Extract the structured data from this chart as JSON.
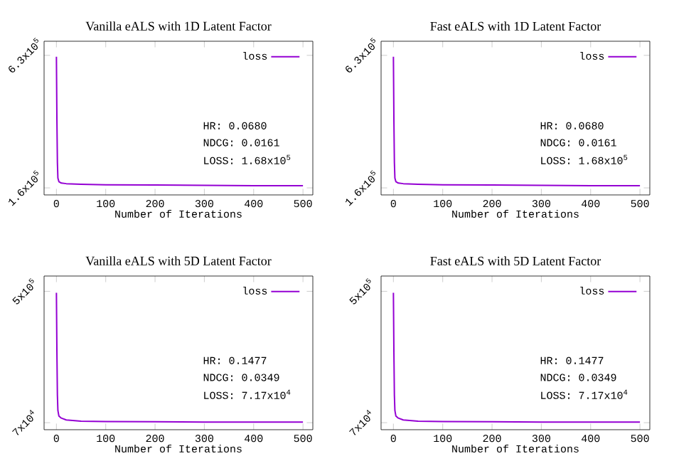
{
  "chart_data": [
    {
      "type": "line",
      "title": "Vanilla eALS with 1D Latent Factor",
      "xlabel": "Number of Iterations",
      "x": [
        0,
        1,
        2,
        3,
        5,
        10,
        20,
        50,
        100,
        200,
        300,
        400,
        500
      ],
      "series": [
        {
          "name": "loss",
          "color": "#9400d3",
          "values": [
            625000,
            400000,
            250000,
            195000,
            182000,
            177000,
            175000,
            173000,
            171000,
            170000,
            169000,
            168000,
            168000
          ]
        }
      ],
      "xlim": [
        -25,
        520
      ],
      "ylim": [
        135000,
        680000
      ],
      "xticks": [
        0,
        100,
        200,
        300,
        400,
        500
      ],
      "yticks": [
        {
          "value": 630000,
          "label": "6.3x10$^{5}$"
        },
        {
          "value": 160000,
          "label": "1.6x10$^{5}$"
        }
      ],
      "legend": "top right",
      "annotations": [
        "HR:   0.0680",
        "NDCG: 0.0161",
        "LOSS: 1.68x10$^{5}$"
      ]
    },
    {
      "type": "line",
      "title": "Fast eALS with 1D Latent Factor",
      "xlabel": "Number of Iterations",
      "x": [
        0,
        1,
        2,
        3,
        5,
        10,
        20,
        50,
        100,
        200,
        300,
        400,
        500
      ],
      "series": [
        {
          "name": "loss",
          "color": "#9400d3",
          "values": [
            625000,
            400000,
            250000,
            195000,
            182000,
            177000,
            175000,
            173000,
            171000,
            170000,
            169000,
            168000,
            168000
          ]
        }
      ],
      "xlim": [
        -25,
        520
      ],
      "ylim": [
        135000,
        680000
      ],
      "xticks": [
        0,
        100,
        200,
        300,
        400,
        500
      ],
      "yticks": [
        {
          "value": 630000,
          "label": "6.3x10$^{5}$"
        },
        {
          "value": 160000,
          "label": "1.6x10$^{5}$"
        }
      ],
      "legend": "top right",
      "annotations": [
        "HR:   0.0680",
        "NDCG: 0.0161",
        "LOSS: 1.68x10$^{5}$"
      ]
    },
    {
      "type": "line",
      "title": "Vanilla eALS with 5D Latent Factor",
      "xlabel": "Number of Iterations",
      "x": [
        0,
        1,
        2,
        3,
        5,
        10,
        20,
        50,
        100,
        200,
        300,
        400,
        500
      ],
      "series": [
        {
          "name": "loss",
          "color": "#9400d3",
          "values": [
            495000,
            300000,
            160000,
            110000,
            92000,
            85000,
            79000,
            75000,
            74000,
            73000,
            72000,
            72000,
            72000
          ]
        }
      ],
      "xlim": [
        -25,
        520
      ],
      "ylim": [
        47000,
        550000
      ],
      "xticks": [
        0,
        100,
        200,
        300,
        400,
        500
      ],
      "yticks": [
        {
          "value": 500000,
          "label": "5x10$^{5}$"
        },
        {
          "value": 70000,
          "label": "7x10$^{4}$"
        }
      ],
      "legend": "top right",
      "annotations": [
        "HR:   0.1477",
        "NDCG: 0.0349",
        "LOSS: 7.17x10$^{4}$"
      ]
    },
    {
      "type": "line",
      "title": "Fast eALS with 5D Latent Factor",
      "xlabel": "Number of Iterations",
      "x": [
        0,
        1,
        2,
        3,
        5,
        10,
        20,
        50,
        100,
        200,
        300,
        400,
        500
      ],
      "series": [
        {
          "name": "loss",
          "color": "#9400d3",
          "values": [
            495000,
            300000,
            160000,
            110000,
            92000,
            85000,
            79000,
            75000,
            74000,
            73000,
            72000,
            72000,
            72000
          ]
        }
      ],
      "xlim": [
        -25,
        520
      ],
      "ylim": [
        47000,
        550000
      ],
      "xticks": [
        0,
        100,
        200,
        300,
        400,
        500
      ],
      "yticks": [
        {
          "value": 500000,
          "label": "5x10$^{5}$"
        },
        {
          "value": 70000,
          "label": "7x10$^{4}$"
        }
      ],
      "legend": "top right",
      "annotations": [
        "HR:   0.1477",
        "NDCG: 0.0349",
        "LOSS: 7.17x10$^{4}$"
      ]
    }
  ]
}
